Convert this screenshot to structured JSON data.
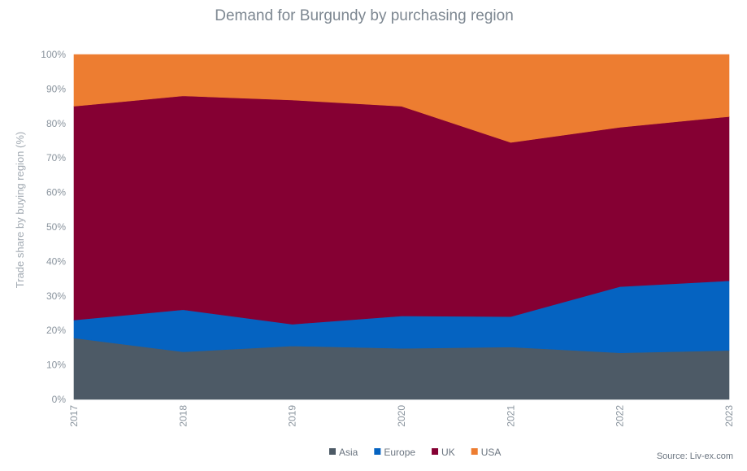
{
  "chart_data": {
    "type": "area",
    "stacked": true,
    "normalized": true,
    "title": "Demand for Burgundy by purchasing region",
    "ylabel": "Trade share by buying region (%)",
    "xlabel": "",
    "ylim": [
      0,
      100
    ],
    "y_tick_values": [
      0,
      10,
      20,
      30,
      40,
      50,
      60,
      70,
      80,
      90,
      100
    ],
    "y_tick_labels": [
      "0%",
      "10%",
      "20%",
      "30%",
      "40%",
      "50%",
      "60%",
      "70%",
      "80%",
      "90%",
      "100%"
    ],
    "categories": [
      "2017",
      "2018",
      "2019",
      "2020",
      "2021",
      "2022",
      "2023"
    ],
    "series": [
      {
        "name": "Asia",
        "color": "#4d5a66",
        "values": [
          17.8,
          13.8,
          15.5,
          14.8,
          15.2,
          13.5,
          14.2
        ]
      },
      {
        "name": "Europe",
        "color": "#0563c1",
        "values": [
          5.2,
          12.2,
          6.3,
          9.4,
          8.8,
          19.2,
          20.2
        ]
      },
      {
        "name": "UK",
        "color": "#850033",
        "values": [
          62.0,
          62.0,
          65.0,
          60.8,
          50.5,
          46.2,
          47.6
        ]
      },
      {
        "name": "USA",
        "color": "#ed7d31",
        "values": [
          15.0,
          12.0,
          13.2,
          15.0,
          25.5,
          21.1,
          18.0
        ]
      }
    ],
    "grid": false,
    "legend_position": "bottom-center"
  },
  "source": "Source: Liv-ex.com"
}
